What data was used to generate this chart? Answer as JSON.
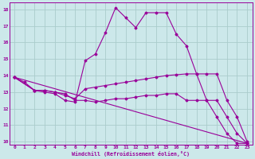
{
  "background_color": "#cce8ea",
  "grid_color": "#aacccc",
  "line_color": "#990099",
  "spine_color": "#660066",
  "xlim": [
    -0.5,
    23.5
  ],
  "ylim": [
    9.8,
    18.4
  ],
  "xlabel": "Windchill (Refroidissement éolien,°C)",
  "xticks": [
    0,
    1,
    2,
    3,
    4,
    5,
    6,
    7,
    8,
    9,
    10,
    11,
    12,
    13,
    14,
    15,
    16,
    17,
    18,
    19,
    20,
    21,
    22,
    23
  ],
  "yticks": [
    10,
    11,
    12,
    13,
    14,
    15,
    16,
    17,
    18
  ],
  "series": [
    {
      "x": [
        0,
        1,
        2,
        3,
        4,
        5,
        6,
        7,
        8,
        9,
        10,
        11,
        12,
        13,
        14,
        15,
        16,
        17,
        18,
        19,
        20,
        21,
        22,
        23
      ],
      "y": [
        13.9,
        13.6,
        13.1,
        13.0,
        12.9,
        12.5,
        12.4,
        14.9,
        15.3,
        16.6,
        18.1,
        17.5,
        16.9,
        17.8,
        17.8,
        17.8,
        16.5,
        15.8,
        14.1,
        12.5,
        11.5,
        10.5,
        9.9,
        9.9
      ]
    },
    {
      "x": [
        0,
        2,
        3,
        4,
        5,
        6,
        7,
        8,
        9,
        10,
        11,
        12,
        13,
        14,
        15,
        16,
        17,
        18,
        19,
        20,
        21,
        22,
        23
      ],
      "y": [
        13.9,
        13.1,
        13.1,
        13.0,
        12.8,
        12.6,
        13.2,
        13.3,
        13.4,
        13.5,
        13.6,
        13.7,
        13.8,
        13.9,
        14.0,
        14.05,
        14.1,
        14.1,
        14.1,
        14.1,
        12.5,
        11.5,
        10.0
      ]
    },
    {
      "x": [
        0,
        2,
        3,
        4,
        5,
        6,
        7,
        8,
        9,
        10,
        11,
        12,
        13,
        14,
        15,
        16,
        17,
        18,
        19,
        20,
        21,
        22,
        23
      ],
      "y": [
        13.9,
        13.1,
        13.1,
        13.0,
        12.9,
        12.5,
        12.5,
        12.4,
        12.5,
        12.6,
        12.6,
        12.7,
        12.8,
        12.8,
        12.9,
        12.9,
        12.5,
        12.5,
        12.5,
        12.5,
        11.5,
        10.5,
        9.9
      ]
    },
    {
      "x": [
        0,
        23
      ],
      "y": [
        13.9,
        9.9
      ]
    }
  ]
}
